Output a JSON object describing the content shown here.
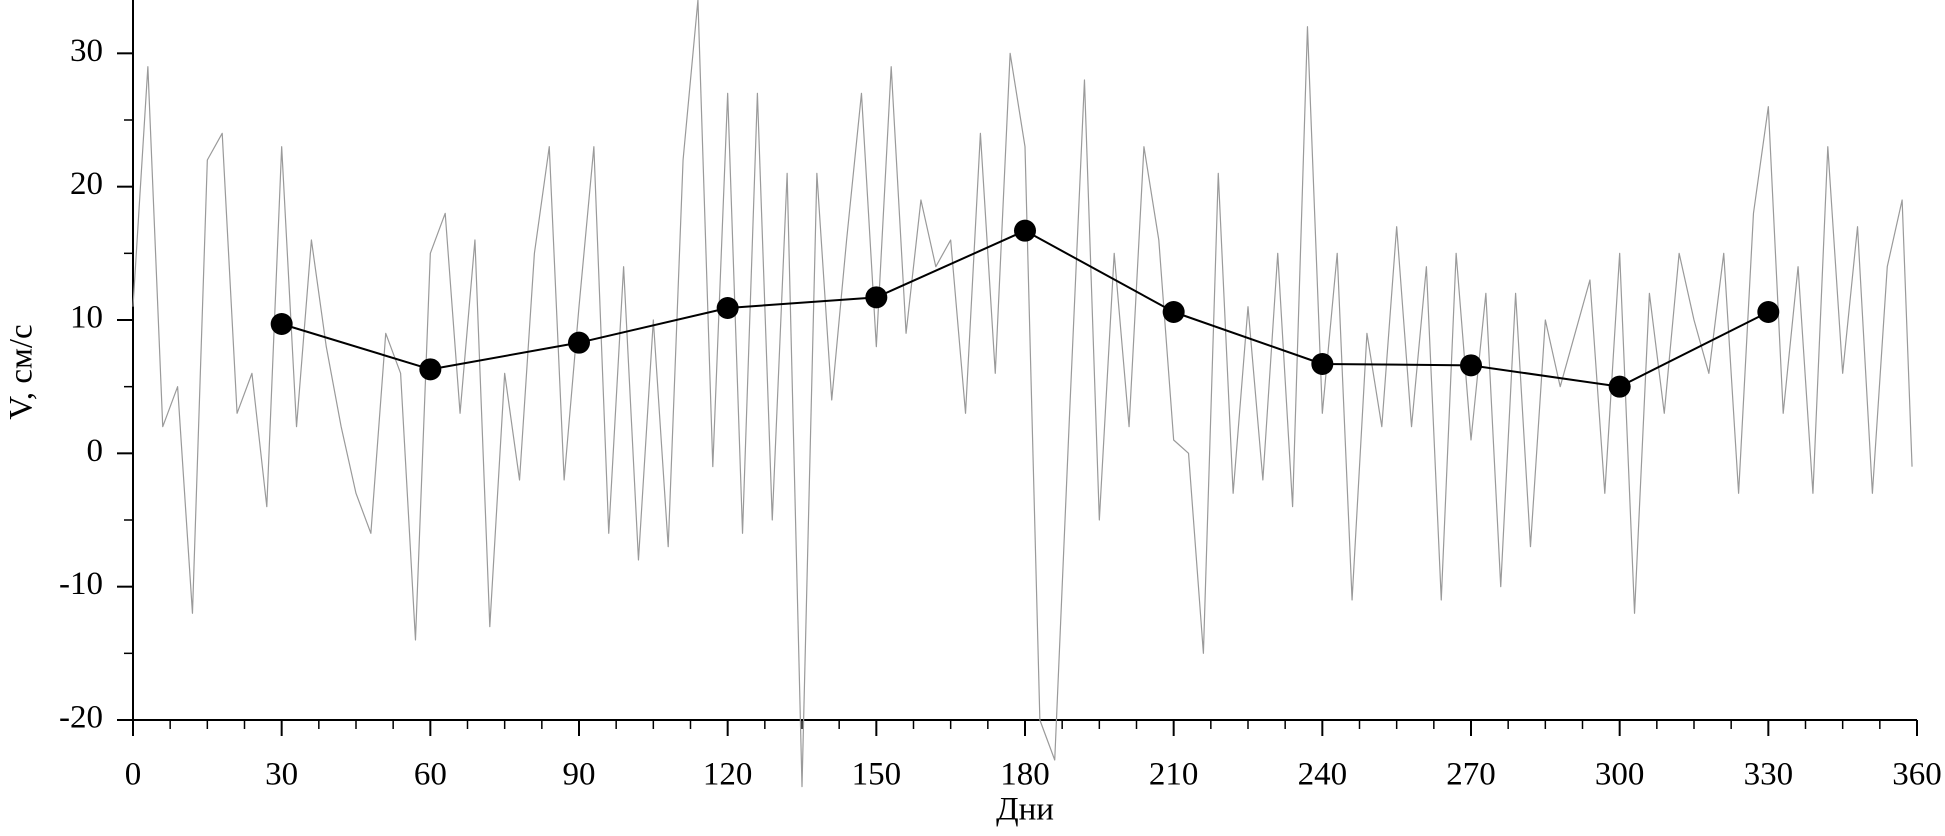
{
  "chart_data": {
    "type": "line",
    "xlabel": "Дни",
    "ylabel": "V, см/с",
    "xlim": [
      0,
      360
    ],
    "xticks": [
      0,
      30,
      60,
      90,
      120,
      150,
      180,
      210,
      240,
      270,
      300,
      330,
      360
    ],
    "ylim": [
      -20,
      34
    ],
    "yticks": [
      -20,
      -10,
      0,
      10,
      20,
      30
    ],
    "series": [
      {
        "color": "#9a9a9a",
        "markers": false,
        "x": [
          0,
          3,
          6,
          9,
          12,
          15,
          18,
          21,
          24,
          27,
          30,
          33,
          36,
          39,
          42,
          45,
          48,
          51,
          54,
          57,
          60,
          63,
          66,
          69,
          72,
          75,
          78,
          81,
          84,
          87,
          90,
          93,
          96,
          99,
          102,
          105,
          108,
          111,
          114,
          117,
          120,
          123,
          126,
          129,
          132,
          135,
          138,
          141,
          144,
          147,
          150,
          153,
          156,
          159,
          162,
          165,
          168,
          171,
          174,
          177,
          180,
          183,
          186,
          189,
          192,
          195,
          198,
          201,
          204,
          207,
          210,
          213,
          216,
          219,
          222,
          225,
          228,
          231,
          234,
          237,
          240,
          243,
          246,
          249,
          252,
          255,
          258,
          261,
          264,
          267,
          270,
          273,
          276,
          279,
          282,
          285,
          288,
          291,
          294,
          297,
          300,
          303,
          306,
          309,
          312,
          315,
          318,
          321,
          324,
          327,
          330,
          333,
          336,
          339,
          342,
          345,
          348,
          351,
          354,
          357,
          359
        ],
        "values": [
          11,
          29,
          2,
          5,
          -12,
          22,
          24,
          3,
          6,
          -4,
          23,
          2,
          16,
          8,
          2,
          -3,
          -6,
          9,
          6,
          -14,
          15,
          18,
          3,
          16,
          -13,
          6,
          -2,
          15,
          23,
          -2,
          11,
          23,
          -6,
          14,
          -8,
          10,
          -7,
          22,
          34,
          -1,
          27,
          -6,
          27,
          -5,
          21,
          -25,
          21,
          4,
          16,
          27,
          8,
          29,
          9,
          19,
          14,
          16,
          3,
          24,
          6,
          30,
          23,
          -20,
          -23,
          3,
          28,
          -5,
          15,
          2,
          23,
          16,
          1,
          0,
          -15,
          21,
          -3,
          11,
          -2,
          15,
          -4,
          32,
          3,
          15,
          -11,
          9,
          2,
          17,
          2,
          14,
          -11,
          15,
          1,
          12,
          -10,
          12,
          -7,
          10,
          5,
          9,
          13,
          -3,
          15,
          -12,
          12,
          3,
          15,
          10,
          6,
          15,
          -3,
          18,
          26,
          3,
          14,
          -3,
          23,
          6,
          17,
          -3,
          14,
          19,
          -1
        ]
      },
      {
        "color": "#000000",
        "markers": true,
        "x": [
          30,
          60,
          90,
          120,
          150,
          180,
          210,
          240,
          270,
          300,
          330
        ],
        "values": [
          9.7,
          6.3,
          8.3,
          10.9,
          11.7,
          16.7,
          10.6,
          6.7,
          6.6,
          5.0,
          10.6
        ]
      }
    ]
  }
}
